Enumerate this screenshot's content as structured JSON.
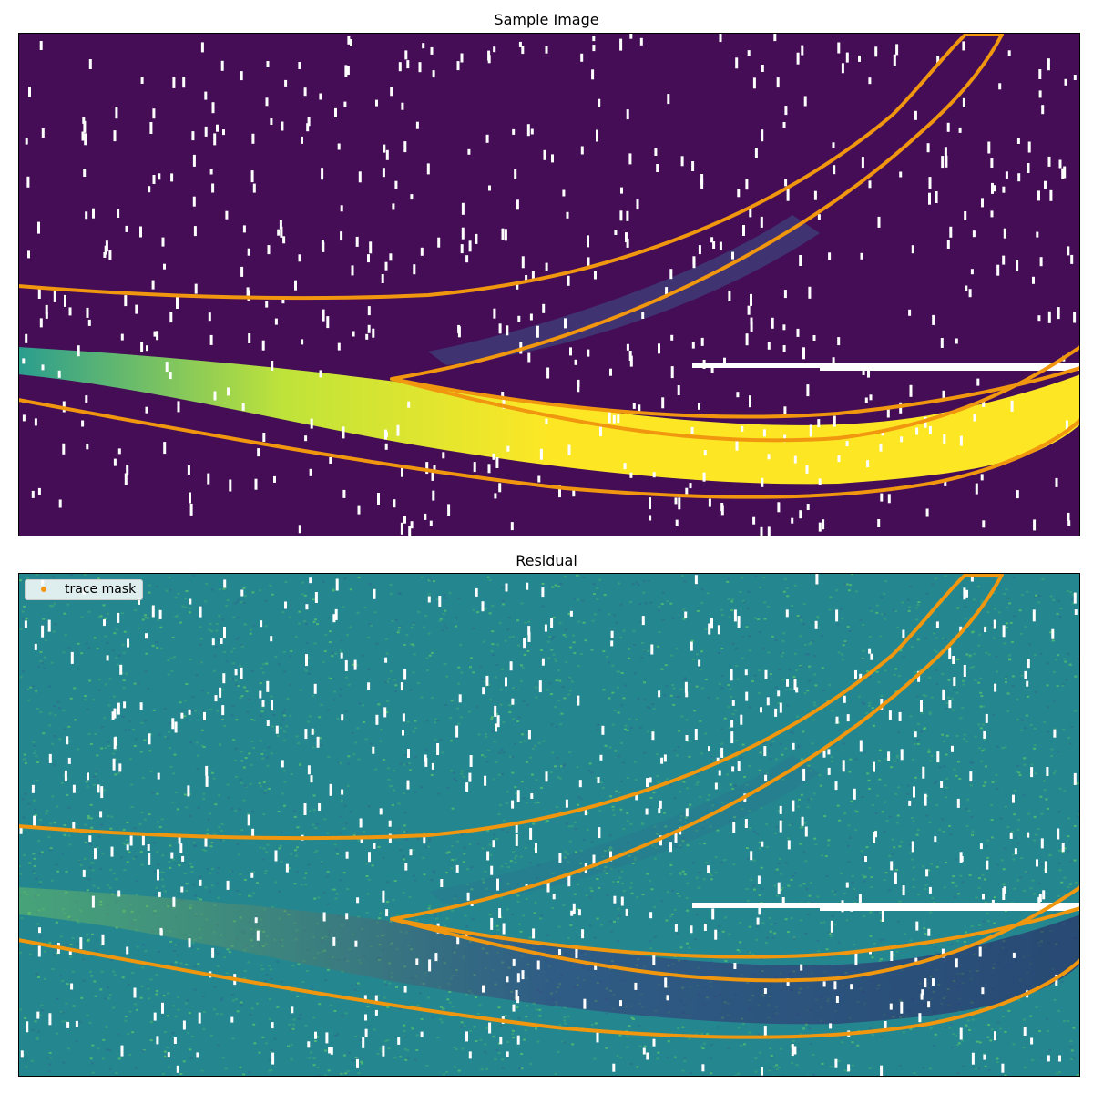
{
  "colors": {
    "trace": "#f0960f",
    "background_top": "#440d55",
    "bright_trace": "#fde725",
    "residual_bg": "#24868e",
    "mask_pixels": "#ffffff"
  },
  "chart_data": [
    {
      "type": "heatmap",
      "title": "Sample Image",
      "colormap": "viridis",
      "axes_ticks": "hidden",
      "legend": null,
      "series": [
        {
          "role": "order-1 trace outline",
          "shape": "closed-curve"
        },
        {
          "role": "order-2 trace outline",
          "shape": "closed-curve"
        }
      ]
    },
    {
      "type": "heatmap",
      "title": "Residual",
      "colormap": "viridis",
      "axes_ticks": "hidden",
      "legend": {
        "placement": "top-left",
        "entries": [
          "trace mask"
        ]
      },
      "series": [
        {
          "name": "trace mask",
          "role": "order-1 trace outline",
          "shape": "closed-curve"
        },
        {
          "role": "order-2 trace outline",
          "shape": "closed-curve"
        }
      ]
    }
  ]
}
